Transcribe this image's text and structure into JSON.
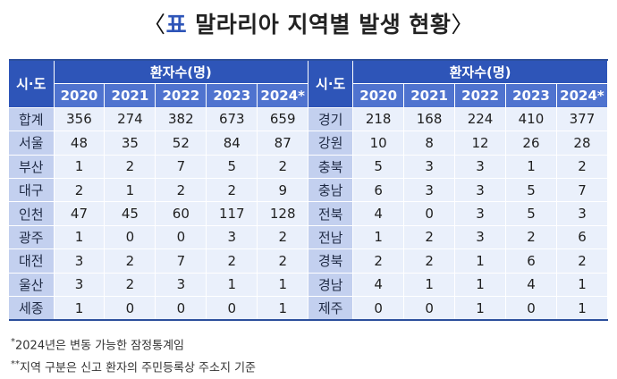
{
  "title": {
    "open_bracket": "〈",
    "prefix": "표",
    "text": "말라리아 지역별 발생 현황",
    "close_bracket": "〉"
  },
  "table": {
    "region_header": "시·도",
    "group_header": "환자수(명)",
    "years": [
      "2020",
      "2021",
      "2022",
      "2023",
      "2024*"
    ],
    "left_rows": [
      {
        "region": "합계",
        "values": [
          "356",
          "274",
          "382",
          "673",
          "659"
        ]
      },
      {
        "region": "서울",
        "values": [
          "48",
          "35",
          "52",
          "84",
          "87"
        ]
      },
      {
        "region": "부산",
        "values": [
          "1",
          "2",
          "7",
          "5",
          "2"
        ]
      },
      {
        "region": "대구",
        "values": [
          "2",
          "1",
          "2",
          "2",
          "9"
        ]
      },
      {
        "region": "인천",
        "values": [
          "47",
          "45",
          "60",
          "117",
          "128"
        ]
      },
      {
        "region": "광주",
        "values": [
          "1",
          "0",
          "0",
          "3",
          "2"
        ]
      },
      {
        "region": "대전",
        "values": [
          "3",
          "2",
          "7",
          "2",
          "2"
        ]
      },
      {
        "region": "울산",
        "values": [
          "3",
          "2",
          "3",
          "1",
          "1"
        ]
      },
      {
        "region": "세종",
        "values": [
          "1",
          "0",
          "0",
          "0",
          "1"
        ]
      }
    ],
    "right_rows": [
      {
        "region": "경기",
        "values": [
          "218",
          "168",
          "224",
          "410",
          "377"
        ]
      },
      {
        "region": "강원",
        "values": [
          "10",
          "8",
          "12",
          "26",
          "28"
        ]
      },
      {
        "region": "충북",
        "values": [
          "5",
          "3",
          "3",
          "1",
          "2"
        ]
      },
      {
        "region": "충남",
        "values": [
          "6",
          "3",
          "3",
          "5",
          "7"
        ]
      },
      {
        "region": "전북",
        "values": [
          "4",
          "0",
          "3",
          "5",
          "3"
        ]
      },
      {
        "region": "전남",
        "values": [
          "1",
          "2",
          "3",
          "2",
          "6"
        ]
      },
      {
        "region": "경북",
        "values": [
          "2",
          "2",
          "1",
          "6",
          "2"
        ]
      },
      {
        "region": "경남",
        "values": [
          "4",
          "1",
          "1",
          "4",
          "1"
        ]
      },
      {
        "region": "제주",
        "values": [
          "0",
          "0",
          "1",
          "0",
          "1"
        ]
      }
    ]
  },
  "footnotes": [
    {
      "mark": "*",
      "text": "2024년은 변동 가능한 잠정통계임"
    },
    {
      "mark": "**",
      "text": "지역 구분은 신고 환자의 주민등록상 주소지 기준"
    }
  ],
  "colors": {
    "header": "#2e55b8",
    "year_header": "#4f73cf",
    "region_cell": "#c3d0ef",
    "value_cell": "#eaf0fb"
  }
}
